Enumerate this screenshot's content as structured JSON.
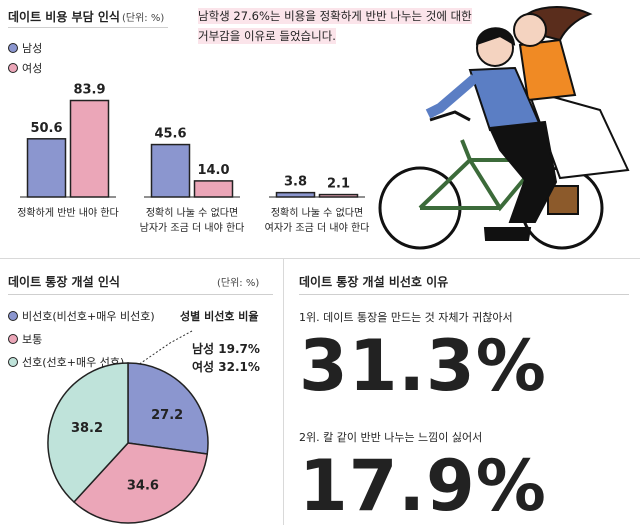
{
  "colors": {
    "male": "#8b96cf",
    "female": "#eba6b8",
    "prefer": "#bfe3da",
    "ink": "#222222"
  },
  "cost": {
    "title": "데이트 비용 부담 인식",
    "unit": "(단위: %)",
    "legend": [
      {
        "label": "남성",
        "color": "#8b96cf"
      },
      {
        "label": "여성",
        "color": "#eba6b8"
      }
    ],
    "quote_highlight": "남학생 27.6%는",
    "quote_rest1": " 비용을 정확하게 반반 나누는 것에 대한",
    "quote_line2": "거부감을 이유로 들었습니다."
  },
  "account": {
    "title": "데이트 통장 개설 인식",
    "unit": "(단위: %)",
    "legend": [
      {
        "label": "비선호(비선호+매우 비선호)",
        "color": "#8b96cf"
      },
      {
        "label": "보통",
        "color": "#eba6b8"
      },
      {
        "label": "선호(선호+매우 선호)",
        "color": "#bfe3da"
      }
    ],
    "gender_title": "성별 비선호 비율",
    "gender_male": "남성 19.7%",
    "gender_female": "여성 32.1%"
  },
  "reasons": {
    "title": "데이트 통장 개설 비선호 이유",
    "items": [
      {
        "label": "1위. 데이트 통장을 만드는 것 자체가 귀찮아서",
        "value": "31.3%"
      },
      {
        "label": "2위. 칼 같이 반반 나누는 느낌이 싫어서",
        "value": "17.9%"
      }
    ]
  },
  "chart_data": [
    {
      "type": "bar",
      "title": "데이트 비용 부담 인식",
      "unit": "%",
      "categories": [
        "정확하게 반반 내야 한다",
        "정확히 나눌 수 없다면 남자가 조금 더 내야 한다",
        "정확히 나눌 수 없다면 여자가 조금 더 내야 한다"
      ],
      "category_lines": [
        [
          "정확하게 반반 내야 한다"
        ],
        [
          "정확히 나눌 수 없다면",
          "남자가 조금 더 내야 한다"
        ],
        [
          "정확히 나눌 수 없다면",
          "여자가 조금 더 내야 한다"
        ]
      ],
      "series": [
        {
          "name": "남성",
          "color": "#8b96cf",
          "values": [
            50.6,
            45.6,
            3.8
          ]
        },
        {
          "name": "여성",
          "color": "#eba6b8",
          "values": [
            83.9,
            14.0,
            2.1
          ]
        }
      ],
      "value_labels": [
        [
          "50.6",
          "45.6",
          "3.8"
        ],
        [
          "83.9",
          "14.0",
          "2.1"
        ]
      ],
      "ylim": [
        0,
        100
      ]
    },
    {
      "type": "pie",
      "title": "데이트 통장 개설 인식",
      "unit": "%",
      "labels": [
        "비선호(비선호+매우 비선호)",
        "보통",
        "선호(선호+매우 선호)"
      ],
      "values": [
        27.2,
        34.6,
        38.2
      ],
      "value_labels": [
        "27.2",
        "34.6",
        "38.2"
      ],
      "colors": [
        "#8b96cf",
        "#eba6b8",
        "#bfe3da"
      ]
    }
  ]
}
